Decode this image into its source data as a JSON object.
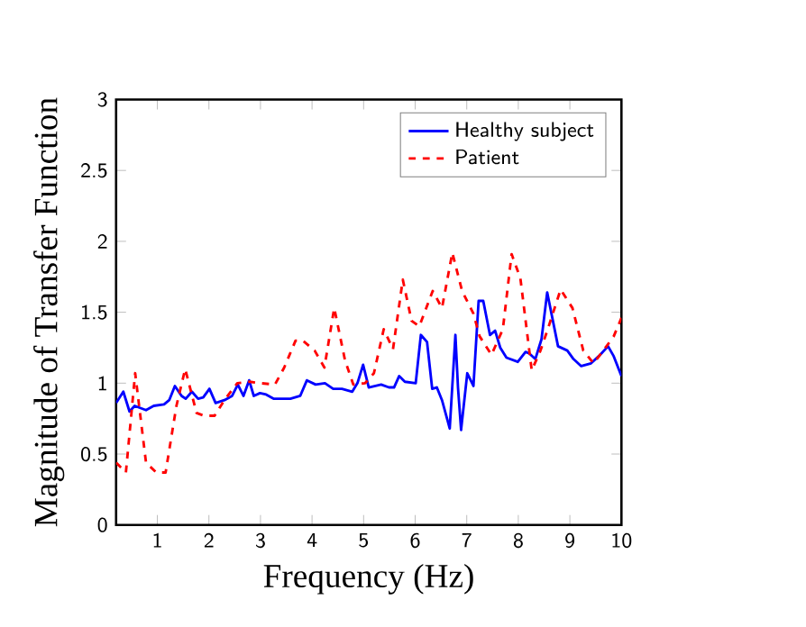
{
  "chart_data": {
    "type": "line",
    "xlabel": "Frequency (Hz)",
    "ylabel": "Magnitude of Transfer Function",
    "xlim": [
      0.2,
      10
    ],
    "ylim": [
      0,
      3
    ],
    "xticks": [
      1,
      2,
      3,
      4,
      5,
      6,
      7,
      8,
      9,
      10
    ],
    "yticks": [
      0,
      0.5,
      1,
      1.5,
      2,
      2.5,
      3
    ],
    "grid": false,
    "legend": "top right",
    "series": [
      {
        "name": "Healthy subject",
        "color": "#0000ff",
        "line_style": "solid",
        "x": [
          0.2,
          0.34,
          0.46,
          0.56,
          0.78,
          0.93,
          1.13,
          1.23,
          1.34,
          1.47,
          1.55,
          1.67,
          1.79,
          1.89,
          2.01,
          2.13,
          2.3,
          2.45,
          2.56,
          2.67,
          2.78,
          2.87,
          2.99,
          3.11,
          3.26,
          3.58,
          3.77,
          3.9,
          4.07,
          4.25,
          4.41,
          4.58,
          4.78,
          4.88,
          4.99,
          5.1,
          5.34,
          5.49,
          5.59,
          5.69,
          5.8,
          6.01,
          6.11,
          6.23,
          6.33,
          6.42,
          6.52,
          6.67,
          6.78,
          6.83,
          6.89,
          7.01,
          7.13,
          7.23,
          7.32,
          7.45,
          7.55,
          7.65,
          7.77,
          7.99,
          8.14,
          8.21,
          8.33,
          8.45,
          8.56,
          8.77,
          8.95,
          9.07,
          9.22,
          9.41,
          9.56,
          9.74,
          9.85,
          10
        ],
        "values": [
          0.86,
          0.94,
          0.8,
          0.84,
          0.81,
          0.84,
          0.85,
          0.88,
          0.98,
          0.91,
          0.89,
          0.94,
          0.89,
          0.9,
          0.96,
          0.86,
          0.88,
          0.91,
          0.99,
          0.91,
          1.02,
          0.91,
          0.93,
          0.92,
          0.89,
          0.89,
          0.91,
          1.02,
          0.99,
          1.0,
          0.96,
          0.96,
          0.94,
          1.0,
          1.13,
          0.97,
          0.99,
          0.97,
          0.97,
          1.05,
          1.01,
          1.0,
          1.34,
          1.29,
          0.96,
          0.97,
          0.88,
          0.68,
          1.34,
          0.97,
          0.67,
          1.07,
          0.98,
          1.58,
          1.58,
          1.34,
          1.37,
          1.25,
          1.18,
          1.15,
          1.22,
          1.21,
          1.17,
          1.31,
          1.64,
          1.26,
          1.23,
          1.17,
          1.12,
          1.14,
          1.19,
          1.26,
          1.19,
          1.05
        ]
      },
      {
        "name": "Patient",
        "color": "#ff0000",
        "line_style": "dashed",
        "x": [
          0.2,
          0.39,
          0.57,
          0.78,
          0.98,
          1.16,
          1.37,
          1.54,
          1.76,
          1.91,
          2.11,
          2.3,
          2.55,
          2.79,
          2.99,
          3.28,
          3.46,
          3.68,
          3.82,
          4.05,
          4.24,
          4.43,
          4.64,
          4.8,
          5.03,
          5.2,
          5.39,
          5.57,
          5.76,
          5.93,
          6.08,
          6.34,
          6.52,
          6.72,
          6.91,
          7.13,
          7.25,
          7.48,
          7.7,
          7.87,
          8.04,
          8.26,
          8.43,
          8.58,
          8.82,
          9.05,
          9.26,
          9.46,
          9.71,
          9.85,
          10
        ],
        "values": [
          0.44,
          0.37,
          1.07,
          0.44,
          0.37,
          0.37,
          0.84,
          1.1,
          0.79,
          0.77,
          0.77,
          0.88,
          1.0,
          1.01,
          1.0,
          0.99,
          1.11,
          1.3,
          1.3,
          1.23,
          1.11,
          1.53,
          1.16,
          0.99,
          1.0,
          1.07,
          1.38,
          1.24,
          1.73,
          1.44,
          1.4,
          1.65,
          1.53,
          1.92,
          1.65,
          1.49,
          1.33,
          1.2,
          1.38,
          1.91,
          1.74,
          1.09,
          1.23,
          1.39,
          1.66,
          1.53,
          1.23,
          1.14,
          1.26,
          1.33,
          1.46
        ]
      }
    ]
  }
}
